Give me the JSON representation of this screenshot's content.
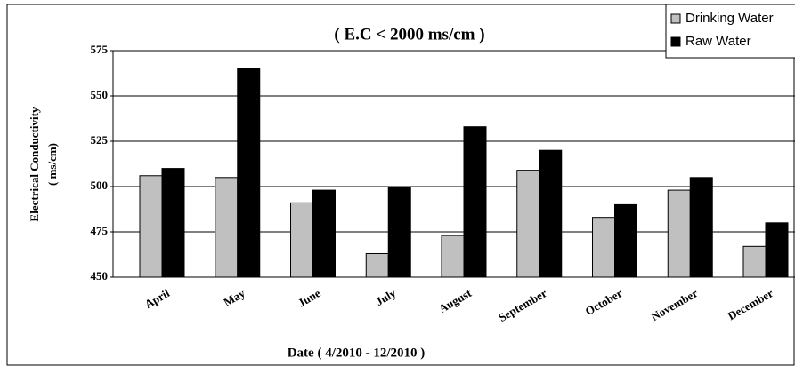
{
  "chart_data": {
    "type": "bar",
    "title": "( E.C < 2000   ms/cm )",
    "x_label": "Date ( 4/2010 - 12/2010 )",
    "y_label": [
      "Electrical Conductivity",
      "( ms/cm)"
    ],
    "categories": [
      "April",
      "May",
      "June",
      "July",
      "August",
      "September",
      "October",
      "November",
      "December"
    ],
    "series": [
      {
        "name": "Drinking Water",
        "color": "#c0c0c0",
        "values": [
          506,
          505,
          491,
          463,
          473,
          509,
          483,
          498,
          467
        ]
      },
      {
        "name": "Raw Water",
        "color": "#000000",
        "values": [
          510,
          565,
          498,
          500,
          533,
          520,
          490,
          505,
          480
        ]
      }
    ],
    "ylim": [
      450,
      575
    ],
    "yticks": [
      450,
      475,
      500,
      525,
      550,
      575
    ],
    "grid": true,
    "legend": "top-right"
  }
}
